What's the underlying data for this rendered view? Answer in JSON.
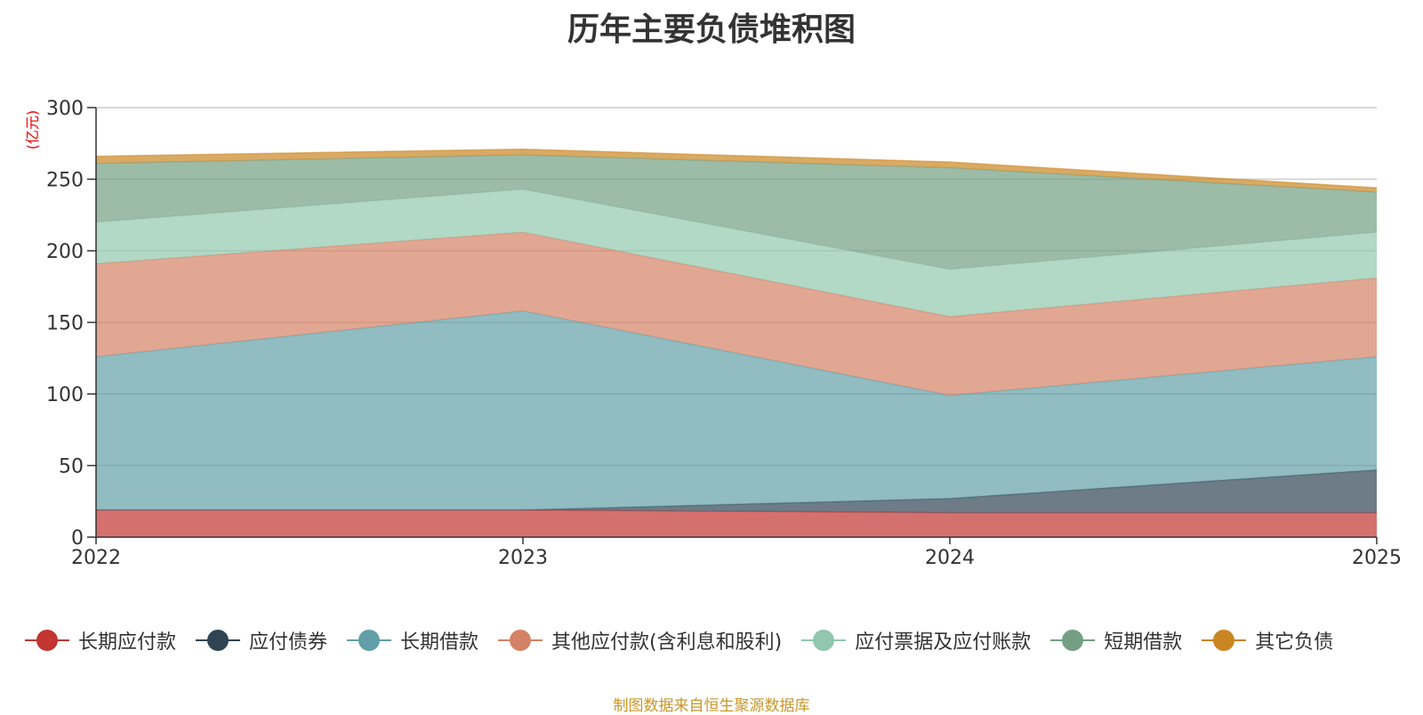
{
  "chart_data": {
    "type": "area",
    "stacked": true,
    "title": "历年主要负债堆积图",
    "ylabel": "(亿元)",
    "categories": [
      "2022",
      "2023",
      "2024",
      "2025"
    ],
    "ylim": [
      0,
      300
    ],
    "yticks": [
      0,
      50,
      100,
      150,
      200,
      250,
      300
    ],
    "grid": true,
    "legend_position": "bottom",
    "series": [
      {
        "name": "长期应付款",
        "color": "#c23531",
        "values": [
          19,
          19,
          17,
          17
        ]
      },
      {
        "name": "应付债券",
        "color": "#2f4554",
        "values": [
          0,
          0,
          10,
          30
        ]
      },
      {
        "name": "长期借款",
        "color": "#61a0a8",
        "values": [
          107,
          139,
          72,
          79
        ]
      },
      {
        "name": "其他应付款(含利息和股利)",
        "color": "#d48265",
        "values": [
          65,
          55,
          55,
          55
        ]
      },
      {
        "name": "应付票据及应付账款",
        "color": "#91c7ae",
        "values": [
          29,
          30,
          33,
          32
        ]
      },
      {
        "name": "短期借款",
        "color": "#749f83",
        "values": [
          41,
          24,
          71,
          28
        ]
      },
      {
        "name": "其它负债",
        "color": "#ca8622",
        "values": [
          5,
          4,
          4,
          3
        ]
      }
    ],
    "source": "制图数据来自恒生聚源数据库"
  }
}
